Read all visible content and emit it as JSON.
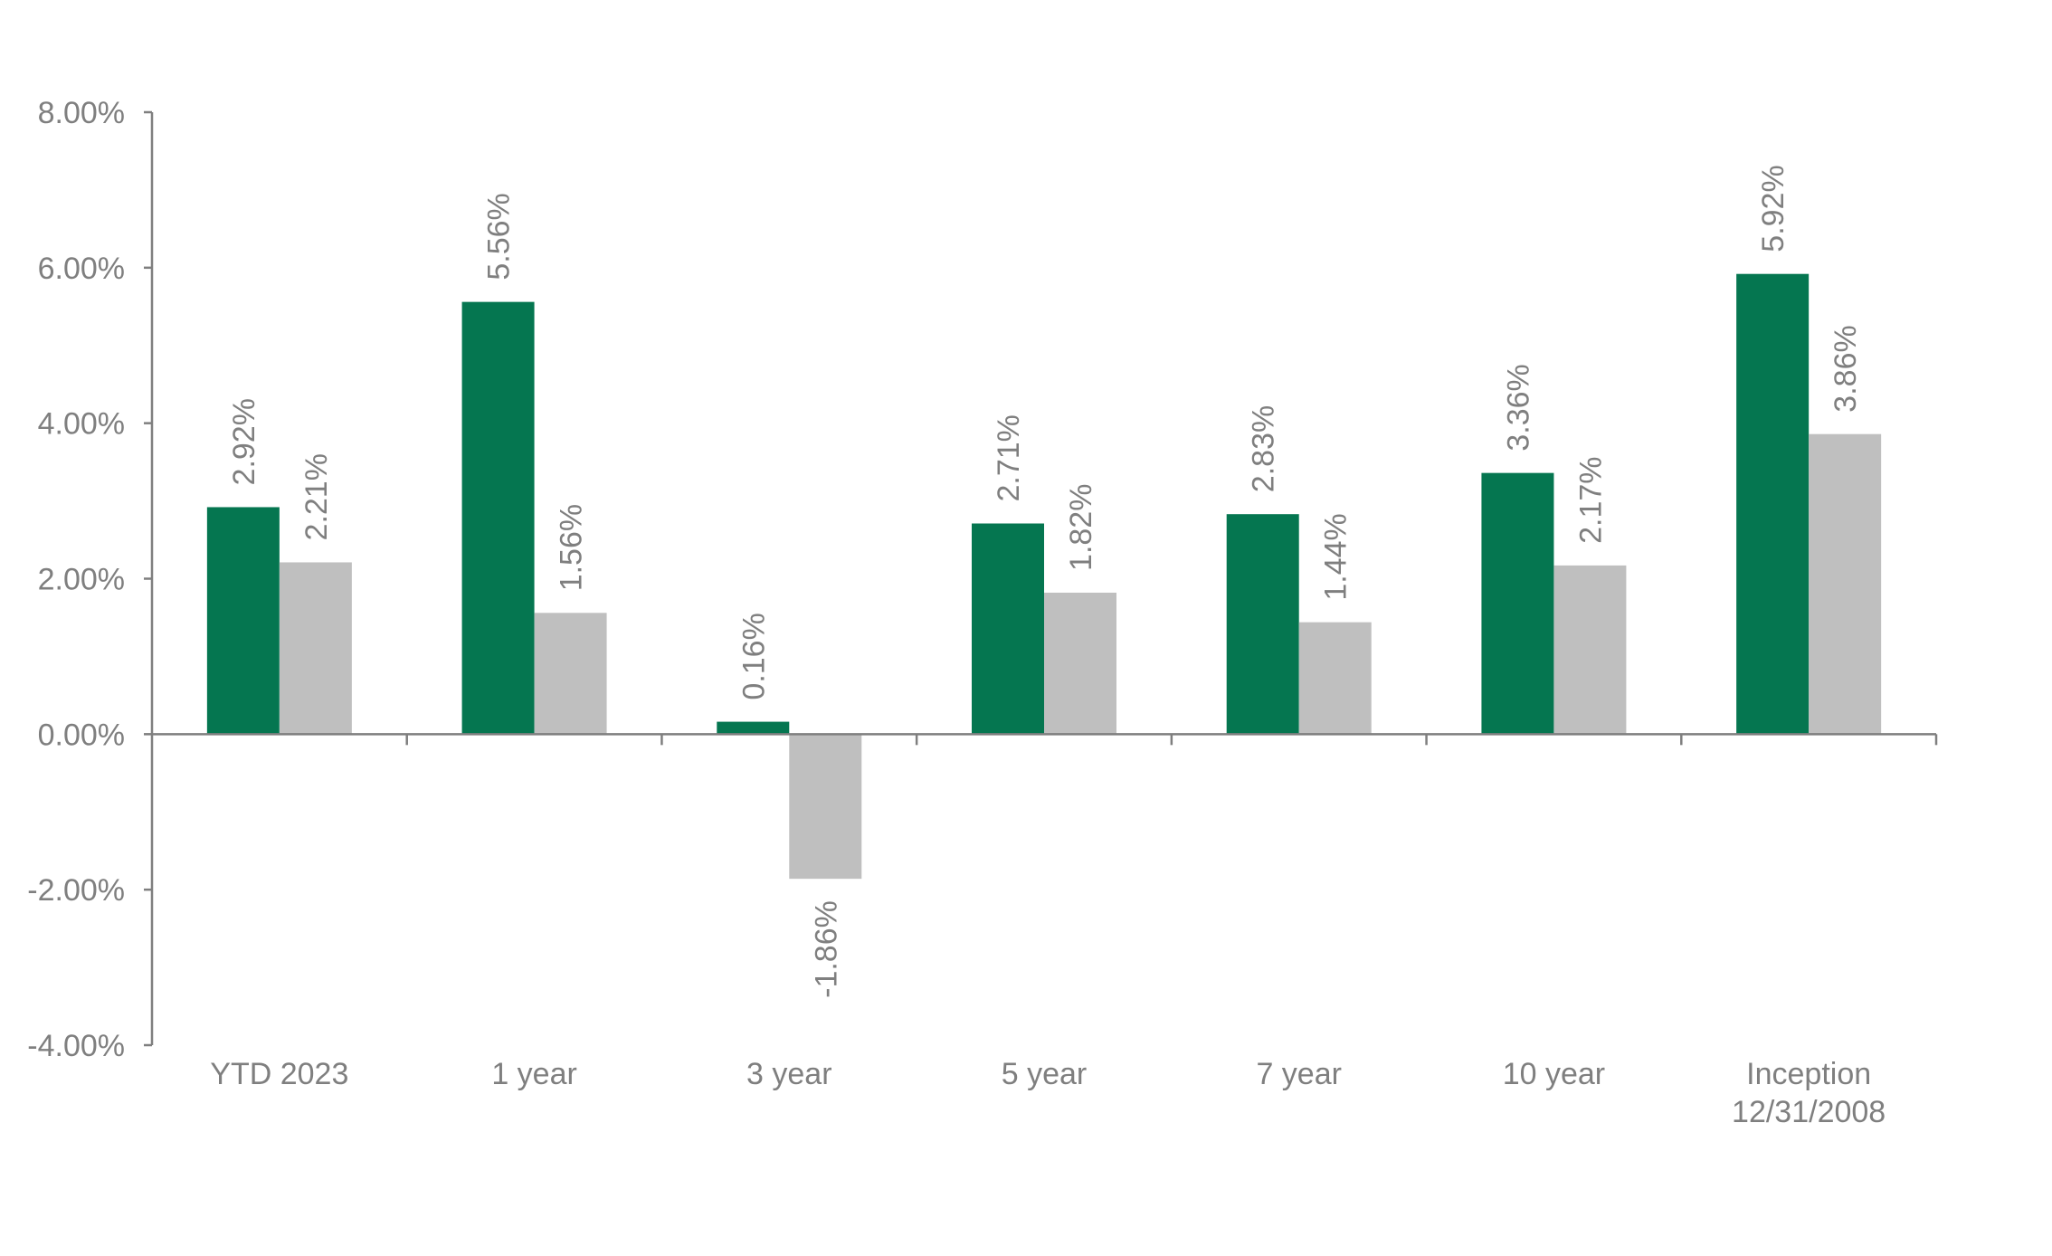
{
  "chart_data": {
    "type": "bar",
    "title": "",
    "xlabel": "",
    "ylabel": "",
    "categories": [
      [
        "YTD 2023"
      ],
      [
        "1 year"
      ],
      [
        "3 year"
      ],
      [
        "5 year"
      ],
      [
        "7 year"
      ],
      [
        "10 year"
      ],
      [
        "Inception",
        "12/31/2008"
      ]
    ],
    "series": [
      {
        "values": [
          2.92,
          5.56,
          0.16,
          2.71,
          2.83,
          3.36,
          5.92
        ],
        "labels": [
          "2.92%",
          "5.56%",
          "0.16%",
          "2.71%",
          "2.83%",
          "3.36%",
          "5.92%"
        ],
        "color": "#057650"
      },
      {
        "values": [
          2.21,
          1.56,
          -1.86,
          1.82,
          1.44,
          2.17,
          3.86
        ],
        "labels": [
          "2.21%",
          "1.56%",
          "-1.86%",
          "1.82%",
          "1.44%",
          "2.17%",
          "3.86%"
        ],
        "color": "#bfbfbf"
      }
    ],
    "ylim": [
      -4,
      8
    ],
    "yticks": [
      8,
      6,
      4,
      2,
      0,
      -2,
      -4
    ],
    "ytick_labels": [
      "8.00%",
      "6.00%",
      "4.00%",
      "2.00%",
      "0.00%",
      "-2.00%",
      "-4.00%"
    ],
    "grid": false,
    "legend": false,
    "axis_color": "#7f7f7f",
    "text_color": "#7f7f7f"
  }
}
